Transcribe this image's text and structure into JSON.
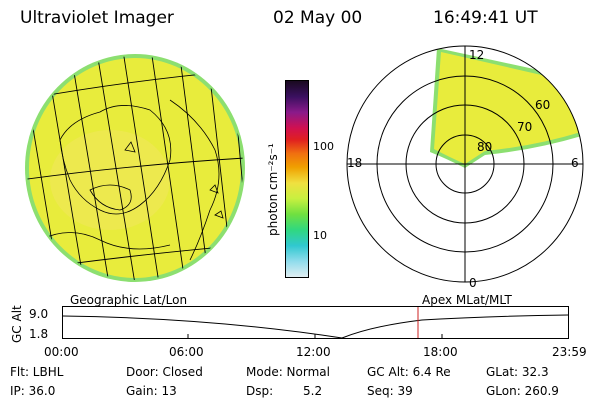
{
  "header": {
    "title": "Ultraviolet Imager",
    "date": "02 May 00",
    "time": "16:49:41 UT"
  },
  "colorbar": {
    "label": "photon cm⁻²s⁻¹",
    "ticks": [
      "100",
      "10"
    ],
    "colors": [
      "#1a0a20",
      "#3a1060",
      "#8a1a8a",
      "#d01050",
      "#e02020",
      "#f07010",
      "#f0a000",
      "#f0e040",
      "#c8f040",
      "#70e040",
      "#30d880",
      "#30c8d0",
      "#90dcec",
      "#e0eef2"
    ]
  },
  "polar": {
    "mlt_labels": [
      "12",
      "18",
      "6",
      "0"
    ],
    "lat_labels": [
      "60",
      "70",
      "80"
    ]
  },
  "timeline": {
    "left_label": "Geographic Lat/Lon",
    "right_label": "Apex MLat/MLT",
    "axis_title": "GC Alt",
    "y_ticks": [
      "9.0",
      "1.8"
    ],
    "x_ticks": [
      "00:00",
      "06:00",
      "12:00",
      "18:00",
      "23:59"
    ],
    "current_marker_time": "16:49:41",
    "marker_color": "#cc2222"
  },
  "info": {
    "row1": {
      "flt": "Flt: LBHL",
      "door": "Door: Closed",
      "mode": "Mode: Normal",
      "gcalt": "GC Alt: 6.4 Re",
      "glat": "GLat: 32.3"
    },
    "row2": {
      "ip": "IP: 36.0",
      "gain": "Gain: 13",
      "dsp": "Dsp:",
      "dsp_val": "5.2",
      "seq": "Seq: 39",
      "glon": "GLon: 260.9"
    }
  },
  "colors": {
    "aurora_fill": "#e8ec3c",
    "aurora_edge": "#8cdf70",
    "marker": "#cc2222"
  }
}
